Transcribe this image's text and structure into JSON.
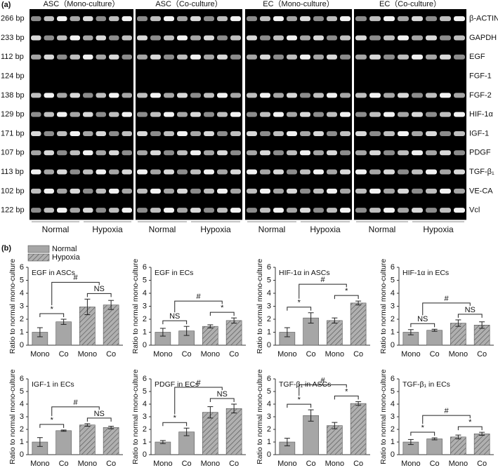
{
  "gel": {
    "panel_label": "(a)",
    "groups": [
      "ASC（Mono-culture）",
      "ASC（Co-culture）",
      "EC（Mono-culture）",
      "EC（Co-culture）"
    ],
    "rows": [
      {
        "size": "266 bp",
        "gene": "β-ACTIN"
      },
      {
        "size": "233 bp",
        "gene": "GAPDH"
      },
      {
        "size": "112 bp",
        "gene": "EGF"
      },
      {
        "size": "124 bp",
        "gene": "FGF-1"
      },
      {
        "size": "138 bp",
        "gene": "FGF-2"
      },
      {
        "size": "129 bp",
        "gene": "HIF-1α"
      },
      {
        "size": "171 bp",
        "gene": "IGF-1"
      },
      {
        "size": "107 bp",
        "gene": "PDGF"
      },
      {
        "size": "113 bp",
        "gene": "TGF-β₁"
      },
      {
        "size": "102 bp",
        "gene": "VE-CA"
      },
      {
        "size": "122 bp",
        "gene": "Vcl"
      }
    ],
    "conditions": [
      "Normal",
      "Hypoxia"
    ]
  },
  "figure_b": {
    "panel_label": "(b)",
    "legend": [
      "Normal",
      "Hypoxia"
    ]
  },
  "chart_data": [
    {
      "type": "bar",
      "title": "EGF in ASCs",
      "ylabel": "Ratio to normal mono-culture",
      "categories": [
        "Mono",
        "Co",
        "Mono",
        "Co"
      ],
      "values": [
        1.0,
        1.8,
        2.95,
        3.1
      ],
      "errors": [
        0.35,
        0.2,
        0.6,
        0.35
      ],
      "color": "#a6a6a6",
      "ylim": [
        0,
        6
      ],
      "yticks": [
        0,
        1,
        2,
        3,
        4,
        5,
        6
      ],
      "annotations": [
        "*",
        "NS",
        "#"
      ]
    },
    {
      "type": "bar",
      "title": "EGF in ECs",
      "ylabel": "Ratio to normal mono-culture",
      "categories": [
        "Mono",
        "Co",
        "Mono",
        "Co"
      ],
      "values": [
        1.0,
        1.1,
        1.45,
        1.9
      ],
      "errors": [
        0.3,
        0.35,
        0.12,
        0.2
      ],
      "color": "#a6a6a6",
      "ylim": [
        0,
        6
      ],
      "yticks": [
        0,
        1,
        2,
        3,
        4,
        5,
        6
      ],
      "annotations": [
        "NS",
        "*",
        "#"
      ]
    },
    {
      "type": "bar",
      "title": "HIF-1α in ASCs",
      "ylabel": "Ratio to normal mono-culture",
      "categories": [
        "Mono",
        "Co",
        "Mono",
        "Co"
      ],
      "values": [
        1.0,
        2.1,
        1.9,
        3.25
      ],
      "errors": [
        0.35,
        0.4,
        0.2,
        0.15
      ],
      "color": "#a6a6a6",
      "ylim": [
        0,
        6
      ],
      "yticks": [
        0,
        1,
        2,
        3,
        4,
        5,
        6
      ],
      "annotations": [
        "*",
        "*",
        "#"
      ]
    },
    {
      "type": "bar",
      "title": "HIF-1α in ECs",
      "ylabel": "Ratio to normal mono-culture",
      "categories": [
        "Mono",
        "Co",
        "Mono",
        "Co"
      ],
      "values": [
        1.0,
        1.15,
        1.7,
        1.55
      ],
      "errors": [
        0.2,
        0.08,
        0.25,
        0.25
      ],
      "color": "#a6a6a6",
      "ylim": [
        0,
        6
      ],
      "yticks": [
        0,
        1,
        2,
        3,
        4,
        5,
        6
      ],
      "annotations": [
        "NS",
        "NS",
        "#"
      ]
    },
    {
      "type": "bar",
      "title": "IGF-1 in ECs",
      "ylabel": "Ratio to normal mono-culture",
      "categories": [
        "Mono",
        "Co",
        "Mono",
        "Co"
      ],
      "values": [
        1.0,
        1.9,
        2.35,
        2.15
      ],
      "errors": [
        0.35,
        0.05,
        0.1,
        0.1
      ],
      "color": "#a6a6a6",
      "ylim": [
        0,
        6
      ],
      "yticks": [
        0,
        1,
        2,
        3,
        4,
        5,
        6
      ],
      "annotations": [
        "*",
        "NS",
        "#"
      ]
    },
    {
      "type": "bar",
      "title": "PDGF in ECs",
      "ylabel": "Ratio to normal mono-culture",
      "categories": [
        "Mono",
        "Co",
        "Mono",
        "Co"
      ],
      "values": [
        1.0,
        1.8,
        3.35,
        3.65
      ],
      "errors": [
        0.12,
        0.3,
        0.45,
        0.35
      ],
      "color": "#a6a6a6",
      "ylim": [
        0,
        6
      ],
      "yticks": [
        0,
        1,
        2,
        3,
        4,
        5,
        6
      ],
      "annotations": [
        "*",
        "NS",
        "#"
      ]
    },
    {
      "type": "bar",
      "title": "TGF-β₁ in ASCs",
      "ylabel": "Ratio to normal mono-culture",
      "categories": [
        "Mono",
        "Co",
        "Mono",
        "Co"
      ],
      "values": [
        1.0,
        3.1,
        2.3,
        4.05
      ],
      "errors": [
        0.3,
        0.45,
        0.25,
        0.15
      ],
      "color": "#a6a6a6",
      "ylim": [
        0,
        6
      ],
      "yticks": [
        0,
        1,
        2,
        3,
        4,
        5,
        6
      ],
      "annotations": [
        "*",
        "*",
        "#"
      ]
    },
    {
      "type": "bar",
      "title": "TGF-β₁ in ECs",
      "ylabel": "Ratio to normal mono-culture",
      "categories": [
        "Mono",
        "Co",
        "Mono",
        "Co"
      ],
      "values": [
        1.0,
        1.25,
        1.4,
        1.65
      ],
      "errors": [
        0.2,
        0.08,
        0.15,
        0.12
      ],
      "color": "#a6a6a6",
      "ylim": [
        0,
        6
      ],
      "yticks": [
        0,
        1,
        2,
        3,
        4,
        5,
        6
      ],
      "annotations": [
        "*",
        "*",
        "#"
      ]
    }
  ]
}
